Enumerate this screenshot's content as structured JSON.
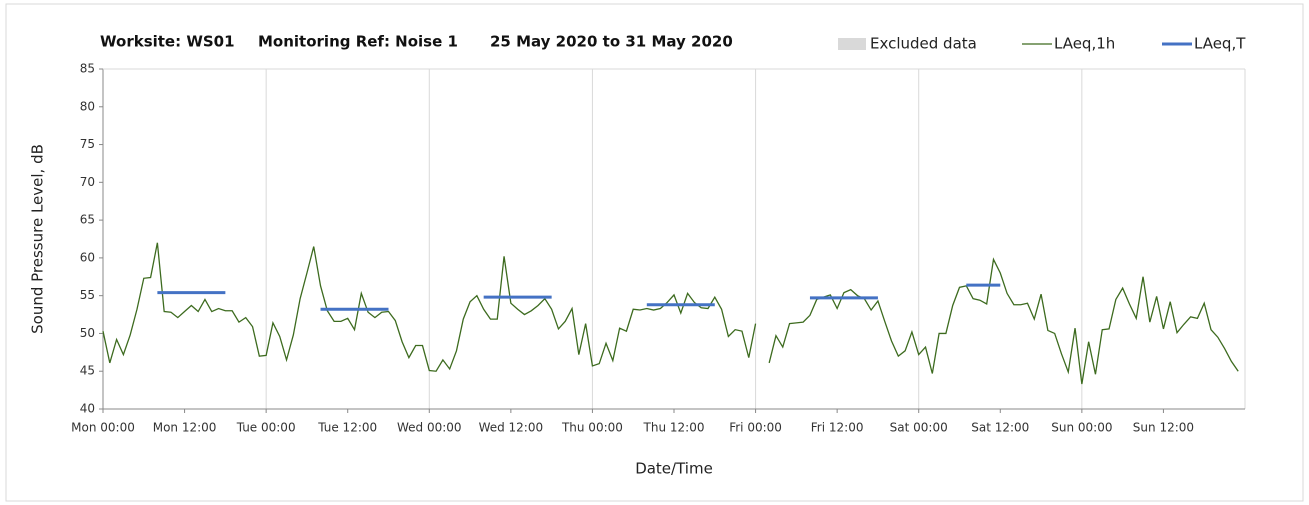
{
  "chart_data": {
    "type": "line",
    "title": [
      "Worksite: WS01",
      "Monitoring Ref: Noise 1",
      "25 May 2020 to 31 May 2020"
    ],
    "xlabel": "Date/Time",
    "ylabel": "Sound Pressure Level, dB",
    "xlim": [
      0,
      168
    ],
    "ylim": [
      40,
      85
    ],
    "yticks": [
      40,
      45,
      50,
      55,
      60,
      65,
      70,
      75,
      80,
      85
    ],
    "xticks": [
      {
        "value": 0,
        "label": "Mon 00:00"
      },
      {
        "value": 12,
        "label": "Mon 12:00"
      },
      {
        "value": 24,
        "label": "Tue 00:00"
      },
      {
        "value": 36,
        "label": "Tue 12:00"
      },
      {
        "value": 48,
        "label": "Wed 00:00"
      },
      {
        "value": 60,
        "label": "Wed 12:00"
      },
      {
        "value": 72,
        "label": "Thu 00:00"
      },
      {
        "value": 84,
        "label": "Thu 12:00"
      },
      {
        "value": 96,
        "label": "Fri 00:00"
      },
      {
        "value": 108,
        "label": "Fri 12:00"
      },
      {
        "value": 120,
        "label": "Sat 00:00"
      },
      {
        "value": 132,
        "label": "Sat 12:00"
      },
      {
        "value": 144,
        "label": "Sun 00:00"
      },
      {
        "value": 156,
        "label": "Sun 12:00"
      }
    ],
    "xgrid": [
      0,
      24,
      48,
      72,
      96,
      120,
      144,
      168
    ],
    "series": [
      {
        "name": "Excluded data",
        "color": "#d9d9d9",
        "values": []
      },
      {
        "name": "LAeq,1h",
        "color": "#3d6b1f",
        "x": [
          0,
          1,
          2,
          3,
          4,
          5,
          6,
          7,
          8,
          9,
          10,
          11,
          12,
          13,
          14,
          15,
          16,
          17,
          18,
          19,
          20,
          21,
          22,
          23,
          24,
          25,
          26,
          27,
          28,
          29,
          30,
          31,
          32,
          33,
          34,
          35,
          36,
          37,
          38,
          39,
          40,
          41,
          42,
          43,
          44,
          45,
          46,
          47,
          48,
          49,
          50,
          51,
          52,
          53,
          54,
          55,
          56,
          57,
          58,
          59,
          60,
          61,
          62,
          63,
          64,
          65,
          66,
          67,
          68,
          69,
          70,
          71,
          72,
          73,
          74,
          75,
          76,
          77,
          78,
          79,
          80,
          81,
          82,
          83,
          84,
          85,
          86,
          87,
          88,
          89,
          90,
          91,
          92,
          93,
          94,
          95,
          96,
          97,
          98,
          99,
          100,
          101,
          102,
          103,
          104,
          105,
          106,
          107,
          108,
          109,
          110,
          111,
          112,
          113,
          114,
          115,
          116,
          117,
          118,
          119,
          120,
          121,
          122,
          123,
          124,
          125,
          126,
          127,
          128,
          129,
          130,
          131,
          132,
          133,
          134,
          135,
          136,
          137,
          138,
          139,
          140,
          141,
          142,
          143,
          144,
          145,
          146,
          147,
          148,
          149,
          150,
          151,
          152,
          153,
          154,
          155,
          156,
          157,
          158,
          159,
          160,
          161,
          162,
          163,
          164,
          165,
          166,
          167
        ],
        "values": [
          50.3,
          46.1,
          49.2,
          47.2,
          49.8,
          53.2,
          57.3,
          57.4,
          62.0,
          52.9,
          52.8,
          52.1,
          52.9,
          53.7,
          52.9,
          54.5,
          52.9,
          53.3,
          53.0,
          53.0,
          51.5,
          52.1,
          50.9,
          47.0,
          47.1,
          51.4,
          49.6,
          46.5,
          49.8,
          54.6,
          58.0,
          61.5,
          56.3,
          53.0,
          51.6,
          51.6,
          52.0,
          50.5,
          55.3,
          52.8,
          52.1,
          52.8,
          52.9,
          51.7,
          48.9,
          46.8,
          48.4,
          48.4,
          45.1,
          45.0,
          46.5,
          45.3,
          47.7,
          51.9,
          54.2,
          55.0,
          53.2,
          51.9,
          51.9,
          60.2,
          54.0,
          53.2,
          52.5,
          53.0,
          53.7,
          54.6,
          53.2,
          50.6,
          51.6,
          53.3,
          47.2,
          51.3,
          45.7,
          46.0,
          48.7,
          46.4,
          50.7,
          50.3,
          53.2,
          53.1,
          53.3,
          53.1,
          53.3,
          54.1,
          55.1,
          52.7,
          55.3,
          54.1,
          53.4,
          53.3,
          54.8,
          53.2,
          49.6,
          50.5,
          50.3,
          46.8,
          51.3,
          null,
          46.1,
          49.7,
          48.2,
          51.3,
          51.4,
          51.5,
          52.4,
          54.5,
          54.8,
          55.1,
          53.3,
          55.4,
          55.8,
          55.0,
          54.6,
          53.1,
          54.3,
          51.6,
          49.0,
          47.0,
          47.7,
          50.2,
          47.2,
          48.2,
          44.7,
          50.0,
          50.0,
          53.7,
          56.1,
          56.3,
          54.6,
          54.4,
          53.9,
          59.8,
          58.0,
          55.3,
          53.8,
          53.8,
          54.0,
          51.9,
          55.2,
          50.4,
          50.0,
          47.3,
          44.9,
          50.7,
          43.3,
          48.9,
          44.6,
          50.5,
          50.6,
          54.5,
          56.0,
          53.9,
          52.0,
          57.5,
          51.5,
          54.9,
          50.6,
          54.2,
          50.1,
          51.2,
          52.2,
          52.0,
          54.0,
          50.5,
          49.5,
          48.0,
          46.3,
          45.0
        ]
      },
      {
        "name": "LAeq,T",
        "color": "#4472c4",
        "segments": [
          {
            "start": 8,
            "end": 18,
            "value": 55.4
          },
          {
            "start": 32,
            "end": 42,
            "value": 53.2
          },
          {
            "start": 56,
            "end": 66,
            "value": 54.8
          },
          {
            "start": 80,
            "end": 90,
            "value": 53.8
          },
          {
            "start": 104,
            "end": 114,
            "value": 54.7
          },
          {
            "start": 127,
            "end": 132,
            "value": 56.4
          }
        ]
      }
    ]
  }
}
